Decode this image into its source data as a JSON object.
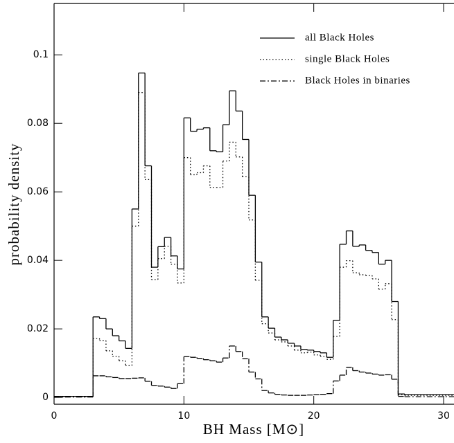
{
  "chart_data": {
    "type": "step-histogram",
    "xlabel": "BH Mass [M⊙]",
    "ylabel": "probability density",
    "bins": [
      0,
      3,
      3.5,
      4,
      4.5,
      5,
      5.5,
      6,
      6.5,
      7,
      7.5,
      8,
      8.5,
      9,
      9.5,
      10,
      10.5,
      11,
      11.5,
      12,
      12.5,
      13,
      13.5,
      14,
      14.5,
      15,
      15.5,
      16,
      16.5,
      17,
      17.5,
      18,
      18.5,
      19,
      19.5,
      20,
      20.5,
      21,
      21.5,
      22,
      22.5,
      23,
      23.5,
      24,
      24.5,
      25,
      25.5,
      26,
      26.5,
      27,
      30.8
    ],
    "series": [
      {
        "name": "all Black Holes",
        "color": "#000000",
        "linestyle": "solid",
        "values": [
          0.0003,
          0.0235,
          0.023,
          0.02,
          0.018,
          0.0165,
          0.0143,
          0.055,
          0.0947,
          0.0676,
          0.038,
          0.044,
          0.0467,
          0.0413,
          0.0375,
          0.0816,
          0.0777,
          0.0783,
          0.0787,
          0.072,
          0.0717,
          0.0796,
          0.0895,
          0.0836,
          0.0753,
          0.059,
          0.0395,
          0.0235,
          0.0202,
          0.0176,
          0.0168,
          0.0158,
          0.015,
          0.014,
          0.0138,
          0.0134,
          0.013,
          0.0117,
          0.0225,
          0.0447,
          0.0486,
          0.0441,
          0.0445,
          0.0429,
          0.0423,
          0.0389,
          0.04,
          0.028,
          0.001,
          0.0008
        ]
      },
      {
        "name": "single Black Holes",
        "color": "#000000",
        "linestyle": "dotted",
        "values": [
          0.0002,
          0.0172,
          0.0166,
          0.0136,
          0.012,
          0.0107,
          0.0093,
          0.05,
          0.089,
          0.0636,
          0.0344,
          0.0405,
          0.0441,
          0.0389,
          0.0334,
          0.07,
          0.065,
          0.0656,
          0.0676,
          0.0613,
          0.0613,
          0.069,
          0.0745,
          0.0702,
          0.0644,
          0.0518,
          0.0342,
          0.0215,
          0.0188,
          0.0168,
          0.0162,
          0.015,
          0.0138,
          0.013,
          0.0132,
          0.0124,
          0.012,
          0.0111,
          0.0178,
          0.038,
          0.0399,
          0.0364,
          0.0358,
          0.0356,
          0.0346,
          0.0316,
          0.0332,
          0.0227,
          0.0008,
          0.0006
        ]
      },
      {
        "name": "Black Holes in binaries",
        "color": "#000000",
        "linestyle": "dashdot",
        "values": [
          0.0001,
          0.0063,
          0.0063,
          0.006,
          0.0058,
          0.0055,
          0.0055,
          0.0056,
          0.0057,
          0.0047,
          0.0035,
          0.0033,
          0.003,
          0.0026,
          0.004,
          0.0119,
          0.0117,
          0.0114,
          0.011,
          0.0107,
          0.0103,
          0.0115,
          0.015,
          0.0134,
          0.0113,
          0.0074,
          0.0054,
          0.002,
          0.0013,
          0.0009,
          0.0007,
          0.0006,
          0.0006,
          0.0006,
          0.0007,
          0.0008,
          0.0009,
          0.0011,
          0.0048,
          0.0065,
          0.0088,
          0.0078,
          0.0074,
          0.0071,
          0.0068,
          0.0065,
          0.0066,
          0.0053,
          0.0003,
          0.0002
        ]
      }
    ],
    "xlim": [
      0,
      30.8
    ],
    "ylim": [
      -0.002,
      0.115
    ],
    "xticks": [
      0,
      10,
      20,
      30
    ],
    "yticks": [
      0,
      0.02,
      0.04,
      0.06,
      0.08,
      0.1
    ],
    "legend": "upper right"
  }
}
